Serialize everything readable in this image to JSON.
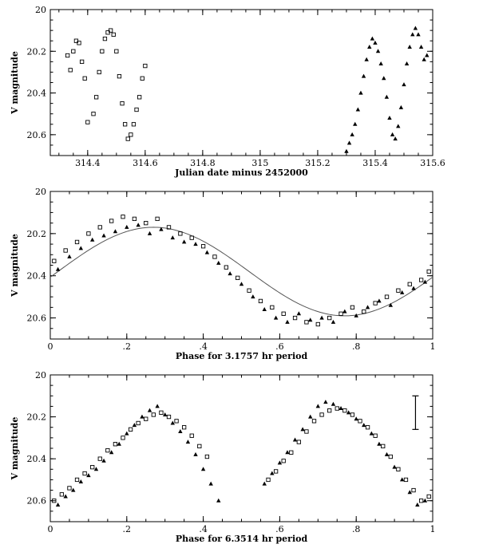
{
  "chart_data": [
    {
      "type": "scatter",
      "title": "",
      "xlabel": "Julian date minus 2452000",
      "ylabel": "V magnitude",
      "xlim": [
        314.27,
        315.6
      ],
      "ylim": [
        20.7,
        20.0
      ],
      "y_inverted": true,
      "xticks": [
        314.4,
        314.6,
        314.8,
        315,
        315.2,
        315.4,
        315.6
      ],
      "xtick_labels": [
        "314.4",
        "314.6",
        "314.8",
        "315",
        "315.2",
        "315.4",
        "315.6"
      ],
      "yticks": [
        20,
        20.2,
        20.4,
        20.6
      ],
      "ytick_labels": [
        "20",
        "20.2",
        "20.4",
        "20.6"
      ],
      "series": [
        {
          "marker": "open-square",
          "x": [
            314.33,
            314.34,
            314.35,
            314.36,
            314.37,
            314.38,
            314.39,
            314.4,
            314.42,
            314.43,
            314.44,
            314.45,
            314.46,
            314.47,
            314.48,
            314.49,
            314.5,
            314.51,
            314.52,
            314.53,
            314.54,
            314.55,
            314.56,
            314.57,
            314.58,
            314.59,
            314.6
          ],
          "y": [
            20.22,
            20.29,
            20.2,
            20.15,
            20.16,
            20.25,
            20.33,
            20.54,
            20.5,
            20.42,
            20.3,
            20.2,
            20.14,
            20.11,
            20.1,
            20.12,
            20.2,
            20.32,
            20.45,
            20.55,
            20.62,
            20.6,
            20.55,
            20.48,
            20.42,
            20.33,
            20.27
          ]
        },
        {
          "marker": "filled-triangle",
          "x": [
            315.3,
            315.31,
            315.32,
            315.33,
            315.34,
            315.35,
            315.36,
            315.37,
            315.38,
            315.39,
            315.4,
            315.41,
            315.42,
            315.43,
            315.44,
            315.45,
            315.46,
            315.47,
            315.48,
            315.49,
            315.5,
            315.51,
            315.52,
            315.53,
            315.54,
            315.55,
            315.56,
            315.57,
            315.58
          ],
          "y": [
            20.68,
            20.64,
            20.6,
            20.55,
            20.48,
            20.4,
            20.32,
            20.24,
            20.18,
            20.14,
            20.16,
            20.2,
            20.26,
            20.33,
            20.42,
            20.52,
            20.6,
            20.62,
            20.56,
            20.47,
            20.36,
            20.26,
            20.18,
            20.12,
            20.09,
            20.12,
            20.18,
            20.24,
            20.22
          ]
        }
      ]
    },
    {
      "type": "scatter",
      "title": "",
      "xlabel": "Phase for 3.1757 hr period",
      "ylabel": "V magnitude",
      "xlim": [
        0,
        1
      ],
      "ylim": [
        20.7,
        20.0
      ],
      "y_inverted": true,
      "xticks": [
        0,
        0.2,
        0.4,
        0.6,
        0.8,
        1
      ],
      "xtick_labels": [
        "0",
        ".2",
        ".4",
        ".6",
        ".8",
        "1"
      ],
      "yticks": [
        20,
        20.2,
        20.4,
        20.6
      ],
      "ytick_labels": [
        "20",
        "20.2",
        "20.4",
        "20.6"
      ],
      "fit_curve": {
        "mean": 20.38,
        "amplitude": 0.21,
        "max_brightness_phase": 0.27
      },
      "series": [
        {
          "marker": "open-square",
          "x": [
            0.01,
            0.04,
            0.07,
            0.1,
            0.13,
            0.16,
            0.19,
            0.22,
            0.25,
            0.28,
            0.31,
            0.34,
            0.37,
            0.4,
            0.43,
            0.46,
            0.49,
            0.52,
            0.55,
            0.58,
            0.61,
            0.64,
            0.67,
            0.7,
            0.73,
            0.76,
            0.79,
            0.82,
            0.85,
            0.88,
            0.91,
            0.94,
            0.97,
            0.99
          ],
          "y": [
            20.33,
            20.28,
            20.24,
            20.2,
            20.17,
            20.14,
            20.12,
            20.13,
            20.15,
            20.13,
            20.17,
            20.2,
            20.22,
            20.26,
            20.31,
            20.36,
            20.41,
            20.47,
            20.52,
            20.55,
            20.58,
            20.6,
            20.62,
            20.63,
            20.6,
            20.58,
            20.55,
            20.57,
            20.53,
            20.5,
            20.47,
            20.44,
            20.42,
            20.38
          ]
        },
        {
          "marker": "filled-triangle",
          "x": [
            0.02,
            0.05,
            0.08,
            0.11,
            0.14,
            0.17,
            0.2,
            0.23,
            0.26,
            0.29,
            0.32,
            0.35,
            0.38,
            0.41,
            0.44,
            0.47,
            0.5,
            0.53,
            0.56,
            0.59,
            0.62,
            0.65,
            0.68,
            0.71,
            0.74,
            0.77,
            0.8,
            0.83,
            0.86,
            0.89,
            0.92,
            0.95,
            0.98
          ],
          "y": [
            20.37,
            20.31,
            20.27,
            20.23,
            20.21,
            20.19,
            20.17,
            20.16,
            20.2,
            20.18,
            20.22,
            20.24,
            20.25,
            20.29,
            20.34,
            20.39,
            20.44,
            20.5,
            20.56,
            20.6,
            20.62,
            20.58,
            20.61,
            20.6,
            20.62,
            20.57,
            20.59,
            20.55,
            20.52,
            20.54,
            20.48,
            20.46,
            20.43
          ]
        }
      ]
    },
    {
      "type": "scatter",
      "title": "",
      "xlabel": "Phase for 6.3514 hr period",
      "ylabel": "V magnitude",
      "xlim": [
        0,
        1
      ],
      "ylim": [
        20.7,
        20.0
      ],
      "y_inverted": true,
      "xticks": [
        0,
        0.2,
        0.4,
        0.6,
        0.8,
        1
      ],
      "xtick_labels": [
        "0",
        ".2",
        ".4",
        ".6",
        ".8",
        "1"
      ],
      "yticks": [
        20,
        20.2,
        20.4,
        20.6
      ],
      "ytick_labels": [
        "20",
        "20.2",
        "20.4",
        "20.6"
      ],
      "error_bar": {
        "x": 0.955,
        "y_low": 20.1,
        "y_high": 20.26
      },
      "series": [
        {
          "marker": "open-square",
          "x": [
            0.01,
            0.03,
            0.05,
            0.07,
            0.09,
            0.11,
            0.13,
            0.15,
            0.17,
            0.19,
            0.21,
            0.23,
            0.25,
            0.27,
            0.29,
            0.31,
            0.33,
            0.35,
            0.37,
            0.39,
            0.41,
            0.57,
            0.59,
            0.61,
            0.63,
            0.65,
            0.67,
            0.69,
            0.71,
            0.73,
            0.75,
            0.77,
            0.79,
            0.81,
            0.83,
            0.85,
            0.87,
            0.89,
            0.91,
            0.93,
            0.95,
            0.97,
            0.99
          ],
          "y": [
            20.6,
            20.57,
            20.54,
            20.5,
            20.47,
            20.44,
            20.4,
            20.36,
            20.33,
            20.3,
            20.26,
            20.23,
            20.21,
            20.19,
            20.18,
            20.2,
            20.22,
            20.25,
            20.29,
            20.34,
            20.39,
            20.5,
            20.46,
            20.41,
            20.37,
            20.32,
            20.27,
            20.22,
            20.19,
            20.17,
            20.16,
            20.17,
            20.19,
            20.22,
            20.25,
            20.29,
            20.34,
            20.39,
            20.45,
            20.5,
            20.55,
            20.6,
            20.58
          ]
        },
        {
          "marker": "filled-triangle",
          "x": [
            0.02,
            0.04,
            0.06,
            0.08,
            0.1,
            0.12,
            0.14,
            0.16,
            0.18,
            0.2,
            0.22,
            0.24,
            0.26,
            0.28,
            0.3,
            0.32,
            0.34,
            0.36,
            0.38,
            0.4,
            0.42,
            0.44,
            0.56,
            0.58,
            0.6,
            0.62,
            0.64,
            0.66,
            0.68,
            0.7,
            0.72,
            0.74,
            0.76,
            0.78,
            0.8,
            0.82,
            0.84,
            0.86,
            0.88,
            0.9,
            0.92,
            0.94,
            0.96,
            0.98
          ],
          "y": [
            20.62,
            20.58,
            20.55,
            20.51,
            20.48,
            20.45,
            20.41,
            20.37,
            20.33,
            20.28,
            20.24,
            20.2,
            20.17,
            20.15,
            20.19,
            20.23,
            20.27,
            20.32,
            20.38,
            20.45,
            20.52,
            20.6,
            20.52,
            20.47,
            20.42,
            20.37,
            20.31,
            20.26,
            20.2,
            20.15,
            20.13,
            20.14,
            20.16,
            20.18,
            20.21,
            20.24,
            20.28,
            20.33,
            20.38,
            20.44,
            20.5,
            20.56,
            20.62,
            20.6
          ]
        }
      ]
    }
  ]
}
